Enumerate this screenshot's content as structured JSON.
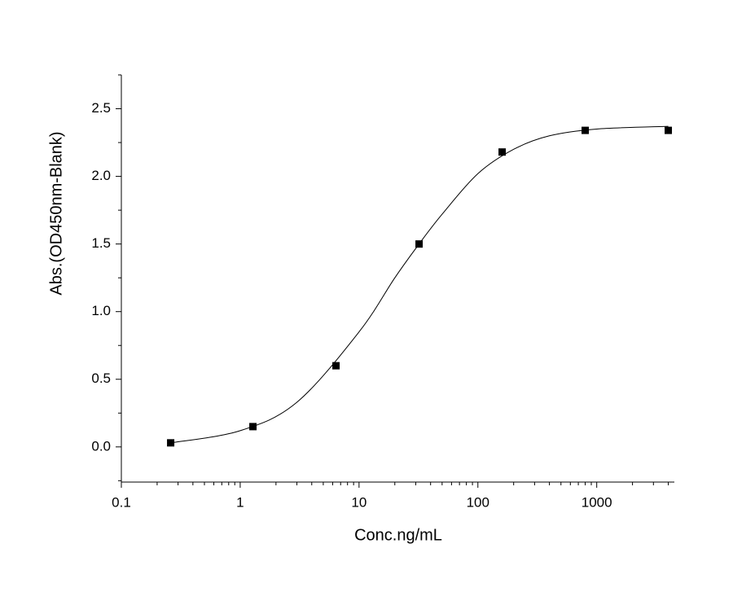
{
  "chart_data": {
    "type": "scatter",
    "x_label": "Conc.ng/mL",
    "y_label": "Abs.(OD450nm-Blank)",
    "x_log": true,
    "xlim": [
      0.1,
      4500
    ],
    "ylim": [
      -0.26,
      2.75
    ],
    "xticks": [
      0.1,
      1,
      10,
      100,
      1000
    ],
    "xminorticks": [
      0.2,
      0.3,
      0.4,
      0.5,
      0.6,
      0.7,
      0.8,
      0.9,
      2,
      3,
      4,
      5,
      6,
      7,
      8,
      9,
      20,
      30,
      40,
      50,
      60,
      70,
      80,
      90,
      200,
      300,
      400,
      500,
      600,
      700,
      800,
      900,
      2000,
      3000,
      4000
    ],
    "yticks": [
      {
        "value": 0,
        "label": "0.0"
      },
      0.5,
      {
        "value": 1,
        "label": "1.0"
      },
      1.5,
      {
        "value": 2,
        "label": "2.0"
      },
      2.5
    ],
    "yminorticks": [
      -0.25,
      0.25,
      0.75,
      1.25,
      1.75,
      2.25,
      2.75
    ],
    "series": [
      {
        "color": "#000000",
        "x": [
          0.26,
          1.28,
          6.4,
          32,
          160,
          800,
          4000
        ],
        "values": [
          0.03,
          0.15,
          0.6,
          1.5,
          2.18,
          2.34,
          2.34
        ]
      },
      {
        "type": "line",
        "color": "#000000",
        "x": [
          0.26,
          1,
          3,
          10,
          20,
          32,
          50,
          100,
          200,
          400,
          1000,
          4000
        ],
        "values": [
          0.03,
          0.12,
          0.33,
          0.85,
          1.25,
          1.5,
          1.72,
          2.02,
          2.2,
          2.3,
          2.35,
          2.37
        ]
      }
    ]
  }
}
